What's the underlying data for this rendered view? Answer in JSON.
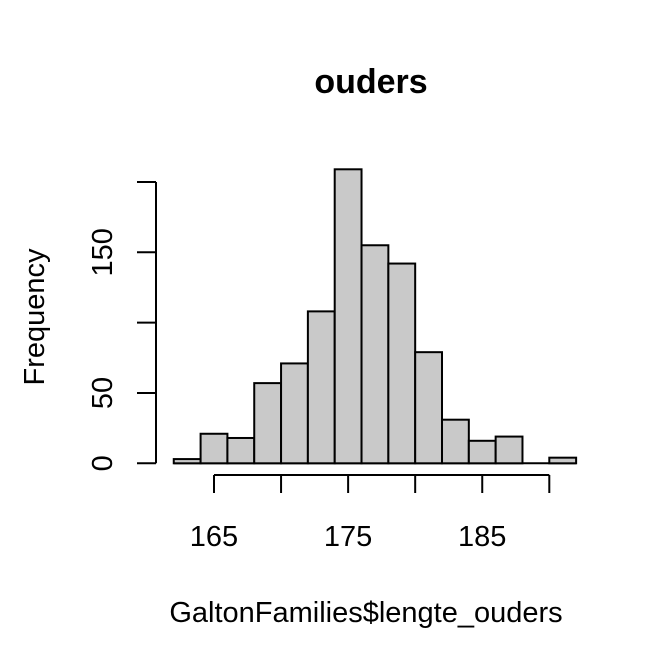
{
  "chart_data": {
    "type": "bar",
    "subtype": "histogram",
    "title": "ouders",
    "xlabel": "GaltonFamilies$lengte_ouders",
    "ylabel": "Frequency",
    "bin_start": 162,
    "bin_width": 2,
    "bin_edges": [
      162,
      164,
      166,
      168,
      170,
      172,
      174,
      176,
      178,
      180,
      182,
      184,
      186,
      188,
      190,
      192
    ],
    "counts": [
      3,
      21,
      18,
      57,
      71,
      108,
      209,
      155,
      142,
      79,
      31,
      16,
      19,
      0,
      4
    ],
    "x_ticks": [
      165,
      170,
      175,
      180,
      185,
      190
    ],
    "x_tick_labels": [
      "165",
      "",
      "175",
      "",
      "185",
      ""
    ],
    "y_ticks": [
      0,
      50,
      100,
      150,
      200
    ],
    "y_tick_labels": [
      "0",
      "50",
      "",
      "150",
      ""
    ],
    "xlim": [
      162,
      192
    ],
    "ylim": [
      0,
      200
    ],
    "grid": "off",
    "legend": "none",
    "bar_fill": "#c9c9c9",
    "bar_stroke": "#000000",
    "background": "#ffffff",
    "text_color": "#000000"
  }
}
